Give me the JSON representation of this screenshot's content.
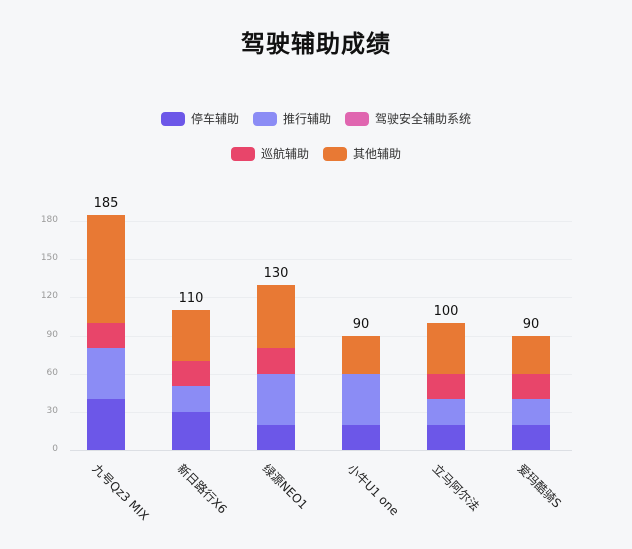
{
  "chart_data": {
    "type": "bar",
    "stacked": true,
    "title": "驾驶辅助成绩",
    "xlabel": "",
    "ylabel": "",
    "ylim": [
      0,
      185
    ],
    "yticks": [
      0,
      30,
      60,
      90,
      120,
      150,
      180
    ],
    "grid": true,
    "legend_position": "top",
    "categories": [
      "九号Qz3 MIX",
      "新日路行X6",
      "绿源NEO1",
      "小牛U1 one",
      "立马阿尔法",
      "爱玛酷骑S"
    ],
    "series": [
      {
        "name": "停车辅助",
        "color": "#6c57e8",
        "values": [
          40,
          30,
          20,
          20,
          20,
          20
        ]
      },
      {
        "name": "推行辅助",
        "color": "#8b8cf5",
        "values": [
          40,
          20,
          40,
          40,
          20,
          20
        ]
      },
      {
        "name": "驾驶安全辅助系统",
        "color": "#e066b0",
        "values": [
          0,
          0,
          0,
          0,
          0,
          0
        ]
      },
      {
        "name": "巡航辅助",
        "color": "#e8456a",
        "values": [
          20,
          20,
          20,
          0,
          20,
          20
        ]
      },
      {
        "name": "其他辅助",
        "color": "#e87934",
        "values": [
          85,
          40,
          50,
          30,
          40,
          30
        ]
      }
    ],
    "totals": [
      185,
      110,
      130,
      90,
      100,
      90
    ]
  },
  "labels": {
    "title": "驾驶辅助成绩",
    "legend": [
      "停车辅助",
      "推行辅助",
      "驾驶安全辅助系统",
      "巡航辅助",
      "其他辅助"
    ],
    "yticks": [
      "0",
      "30",
      "60",
      "90",
      "120",
      "150",
      "180"
    ],
    "categories": [
      "九号Qz3 MIX",
      "新日路行X6",
      "绿源NEO1",
      "小牛U1 one",
      "立马阿尔法",
      "爱玛酷骑S"
    ],
    "totals": [
      "185",
      "110",
      "130",
      "90",
      "100",
      "90"
    ]
  }
}
